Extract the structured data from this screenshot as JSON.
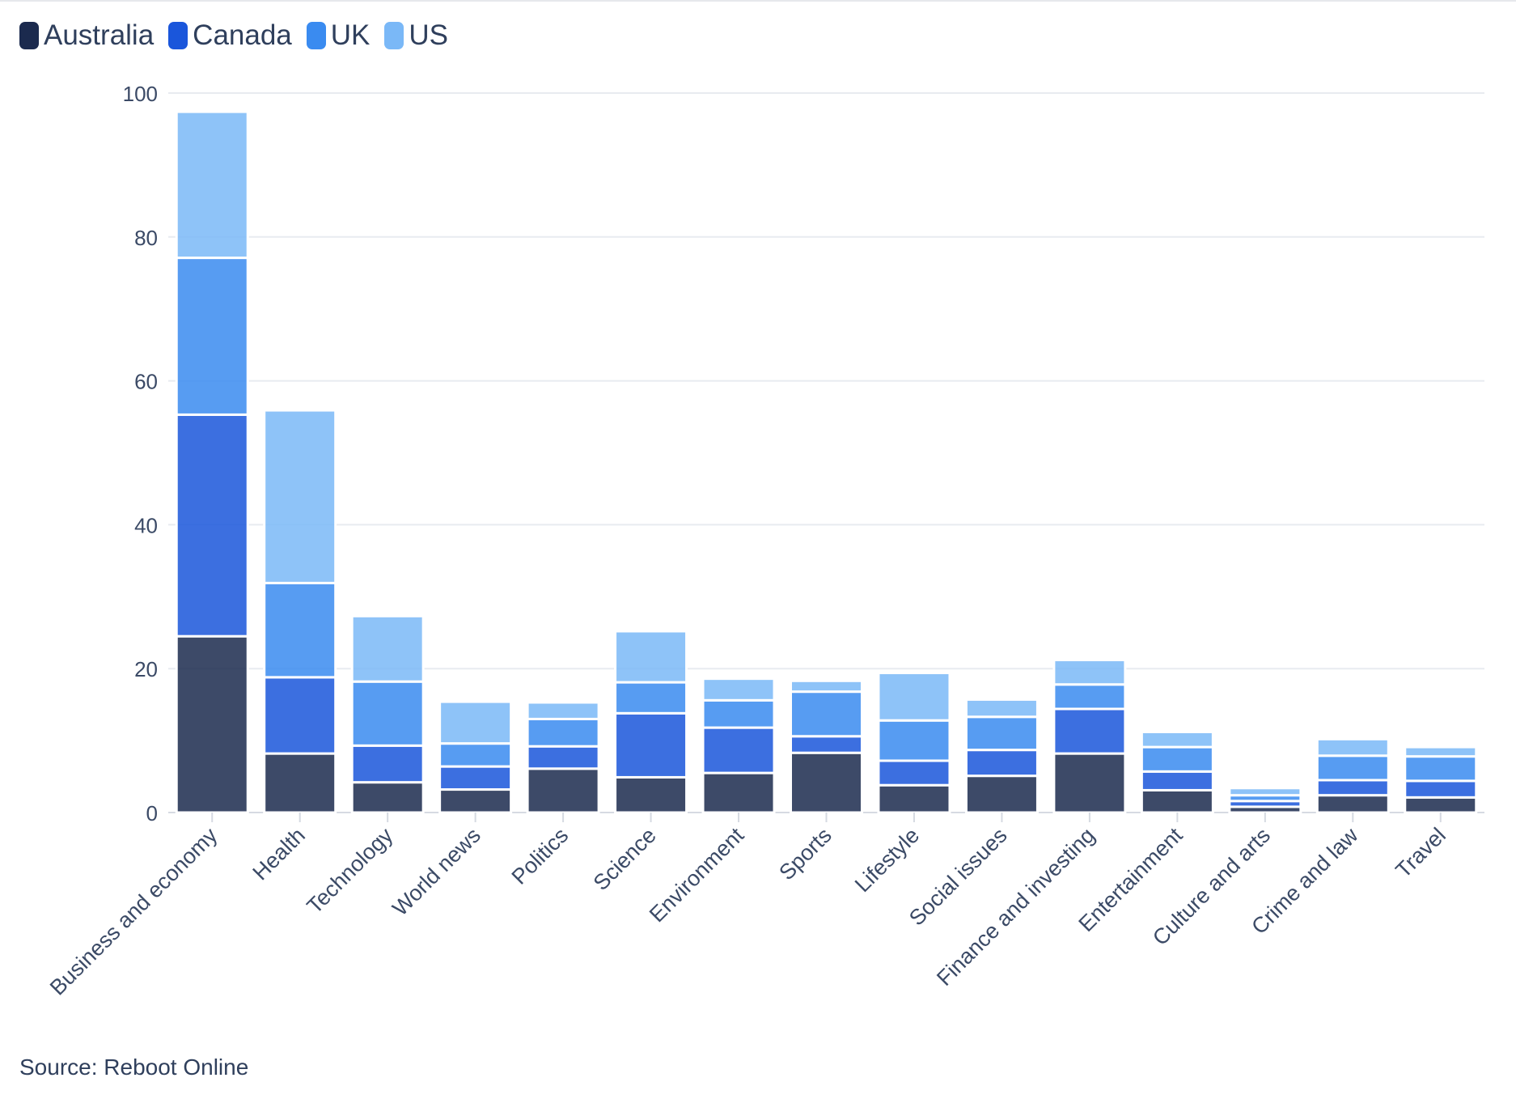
{
  "chart_data": {
    "type": "bar",
    "stacked": true,
    "categories": [
      "Business and economy",
      "Health",
      "Technology",
      "World news",
      "Politics",
      "Science",
      "Environment",
      "Sports",
      "Lifestyle",
      "Social issues",
      "Finance and investing",
      "Entertainment",
      "Culture and arts",
      "Crime and law",
      "Travel"
    ],
    "series": [
      {
        "name": "Australia",
        "color": "#1b2a4e",
        "values": [
          24.5,
          8.2,
          4.2,
          3.2,
          6.1,
          4.9,
          5.5,
          8.3,
          3.8,
          5.1,
          8.2,
          3.1,
          0.8,
          2.4,
          2.1
        ]
      },
      {
        "name": "Canada",
        "color": "#1a56db",
        "values": [
          30.8,
          10.6,
          5.1,
          3.2,
          3.1,
          8.9,
          6.3,
          2.3,
          3.4,
          3.6,
          6.2,
          2.6,
          0.8,
          2.1,
          2.3
        ]
      },
      {
        "name": "UK",
        "color": "#3a8bf0",
        "values": [
          21.8,
          13.1,
          8.9,
          3.2,
          3.8,
          4.3,
          3.8,
          6.2,
          5.6,
          4.6,
          3.4,
          3.4,
          0.8,
          3.4,
          3.4
        ]
      },
      {
        "name": "US",
        "color": "#7ab8f7",
        "values": [
          20.3,
          24.0,
          9.1,
          5.8,
          2.3,
          7.1,
          3.0,
          1.5,
          6.6,
          2.4,
          3.4,
          2.1,
          1.0,
          2.3,
          1.3
        ]
      }
    ],
    "ylim": [
      0,
      100
    ],
    "yticks": [
      0,
      20,
      40,
      60,
      80,
      100
    ],
    "grid": true,
    "legend_position": "top-left",
    "xlabel": "",
    "ylabel": "",
    "title": ""
  },
  "source": "Source: Reboot Online"
}
